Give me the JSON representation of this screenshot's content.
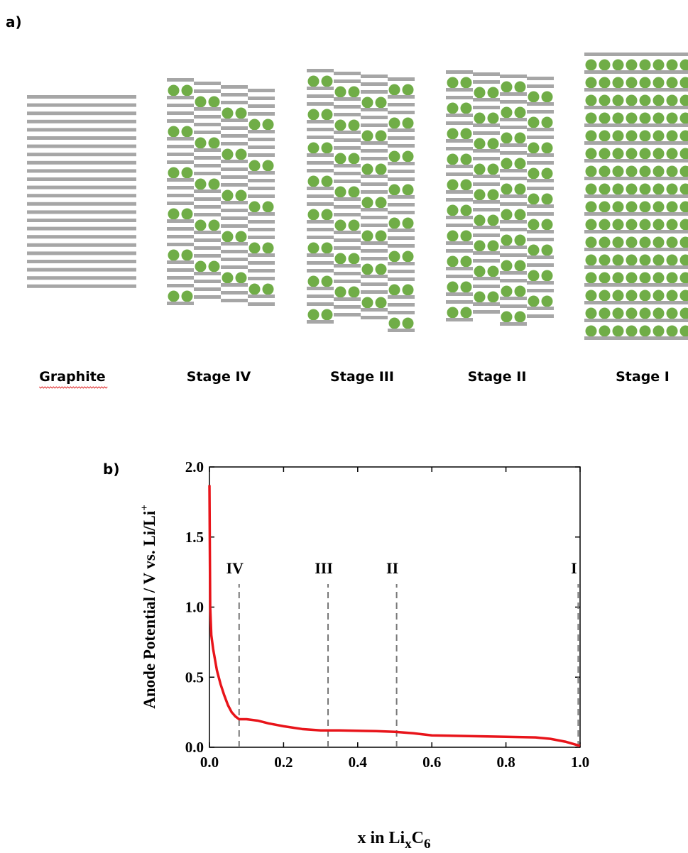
{
  "panel_a": {
    "label": "a)",
    "stages": [
      "Graphite",
      "Stage IV",
      "Stage III",
      "Stage II",
      "Stage I"
    ]
  },
  "chart_data": {
    "type": "line",
    "panel_label": "b)",
    "x_label": [
      "x in Li",
      "x",
      "C",
      "6"
    ],
    "y_label": [
      "Anode Potential / V vs. Li/Li",
      "+"
    ],
    "x": [
      0,
      0.002,
      0.005,
      0.01,
      0.02,
      0.03,
      0.04,
      0.05,
      0.06,
      0.07,
      0.08,
      0.1,
      0.13,
      0.16,
      0.2,
      0.25,
      0.3,
      0.35,
      0.45,
      0.5,
      0.55,
      0.6,
      0.7,
      0.8,
      0.88,
      0.92,
      0.96,
      1.0
    ],
    "series": [
      {
        "color": "#e8141a",
        "values": [
          1.87,
          1.0,
          0.8,
          0.7,
          0.55,
          0.45,
          0.37,
          0.3,
          0.25,
          0.22,
          0.2,
          0.2,
          0.19,
          0.17,
          0.15,
          0.13,
          0.12,
          0.12,
          0.115,
          0.11,
          0.1,
          0.085,
          0.08,
          0.075,
          0.07,
          0.06,
          0.04,
          0.01
        ]
      }
    ],
    "xlim": [
      0,
      1
    ],
    "ylim": [
      0,
      2
    ],
    "xticks": [
      {
        "value": 0,
        "label": "0.0"
      },
      0.2,
      0.4,
      0.6,
      0.8,
      {
        "value": 1,
        "label": "1.0"
      }
    ],
    "yticks": [
      {
        "value": 0,
        "label": "0.0"
      },
      0.5,
      {
        "value": 1,
        "label": "1.0"
      },
      1.5,
      {
        "value": 2,
        "label": "2.0"
      }
    ],
    "annotations": [
      {
        "label": "IV",
        "x": 0.08
      },
      {
        "label": "III",
        "x": 0.32
      },
      {
        "label": "II",
        "x": 0.505
      },
      {
        "label": "I",
        "x": 0.995
      }
    ]
  }
}
